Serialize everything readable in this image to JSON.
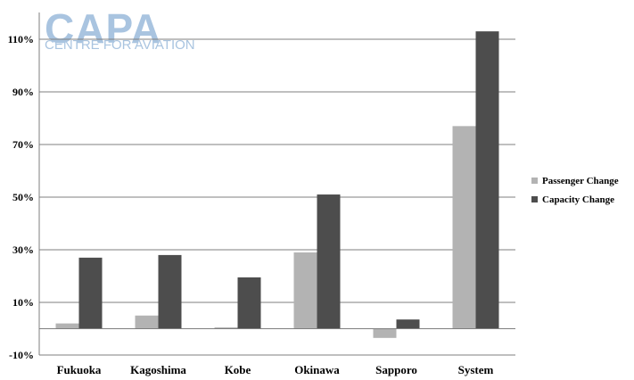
{
  "logo": {
    "name": "CAPA",
    "tagline": "CENTRE FOR AVIATION"
  },
  "colors": {
    "passenger": "#b3b3b3",
    "capacity": "#4d4d4d",
    "grid": "#7f7f7f",
    "logo": "#a9c4e0"
  },
  "chart_data": {
    "type": "bar",
    "title": "",
    "xlabel": "",
    "ylabel": "",
    "categories": [
      "Fukuoka",
      "Kagoshima",
      "Kobe",
      "Okinawa",
      "Sapporo",
      "System"
    ],
    "series": [
      {
        "name": "Passenger Change",
        "color": "#b3b3b3",
        "values": [
          2,
          5,
          0.5,
          29,
          -3.5,
          77
        ]
      },
      {
        "name": "Capacity Change",
        "color": "#4d4d4d",
        "values": [
          27,
          28,
          19.5,
          51,
          3.5,
          113
        ]
      }
    ],
    "ylim": [
      -10,
      120
    ],
    "yticks": [
      -10,
      10,
      30,
      50,
      70,
      90,
      110
    ],
    "ytick_labels": [
      "-10%",
      "10%",
      "30%",
      "50%",
      "70%",
      "90%",
      "110%"
    ],
    "grid": true,
    "legend_position": "right"
  }
}
